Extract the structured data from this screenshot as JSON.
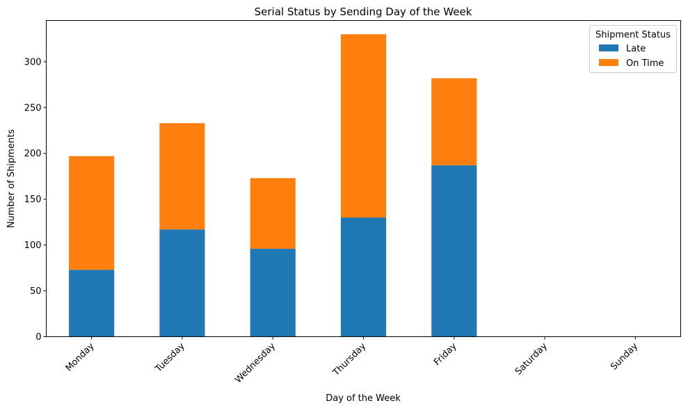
{
  "chart_data": {
    "type": "bar",
    "stacked": true,
    "title": "Serial Status by Sending Day of the Week",
    "xlabel": "Day of the Week",
    "ylabel": "Number of Shipments",
    "categories": [
      "Monday",
      "Tuesday",
      "Wednesday",
      "Thursday",
      "Friday",
      "Saturday",
      "Sunday"
    ],
    "series": [
      {
        "name": "Late",
        "color": "#1f77b4",
        "values": [
          73,
          117,
          96,
          130,
          187,
          0,
          0
        ]
      },
      {
        "name": "On Time",
        "color": "#ff7f0e",
        "values": [
          124,
          116,
          77,
          200,
          95,
          0,
          0
        ]
      }
    ],
    "ylim": [
      0,
      345
    ],
    "yticks": [
      0,
      50,
      100,
      150,
      200,
      250,
      300
    ],
    "legend": {
      "title": "Shipment Status",
      "placement": "top-right"
    },
    "grid": false
  }
}
